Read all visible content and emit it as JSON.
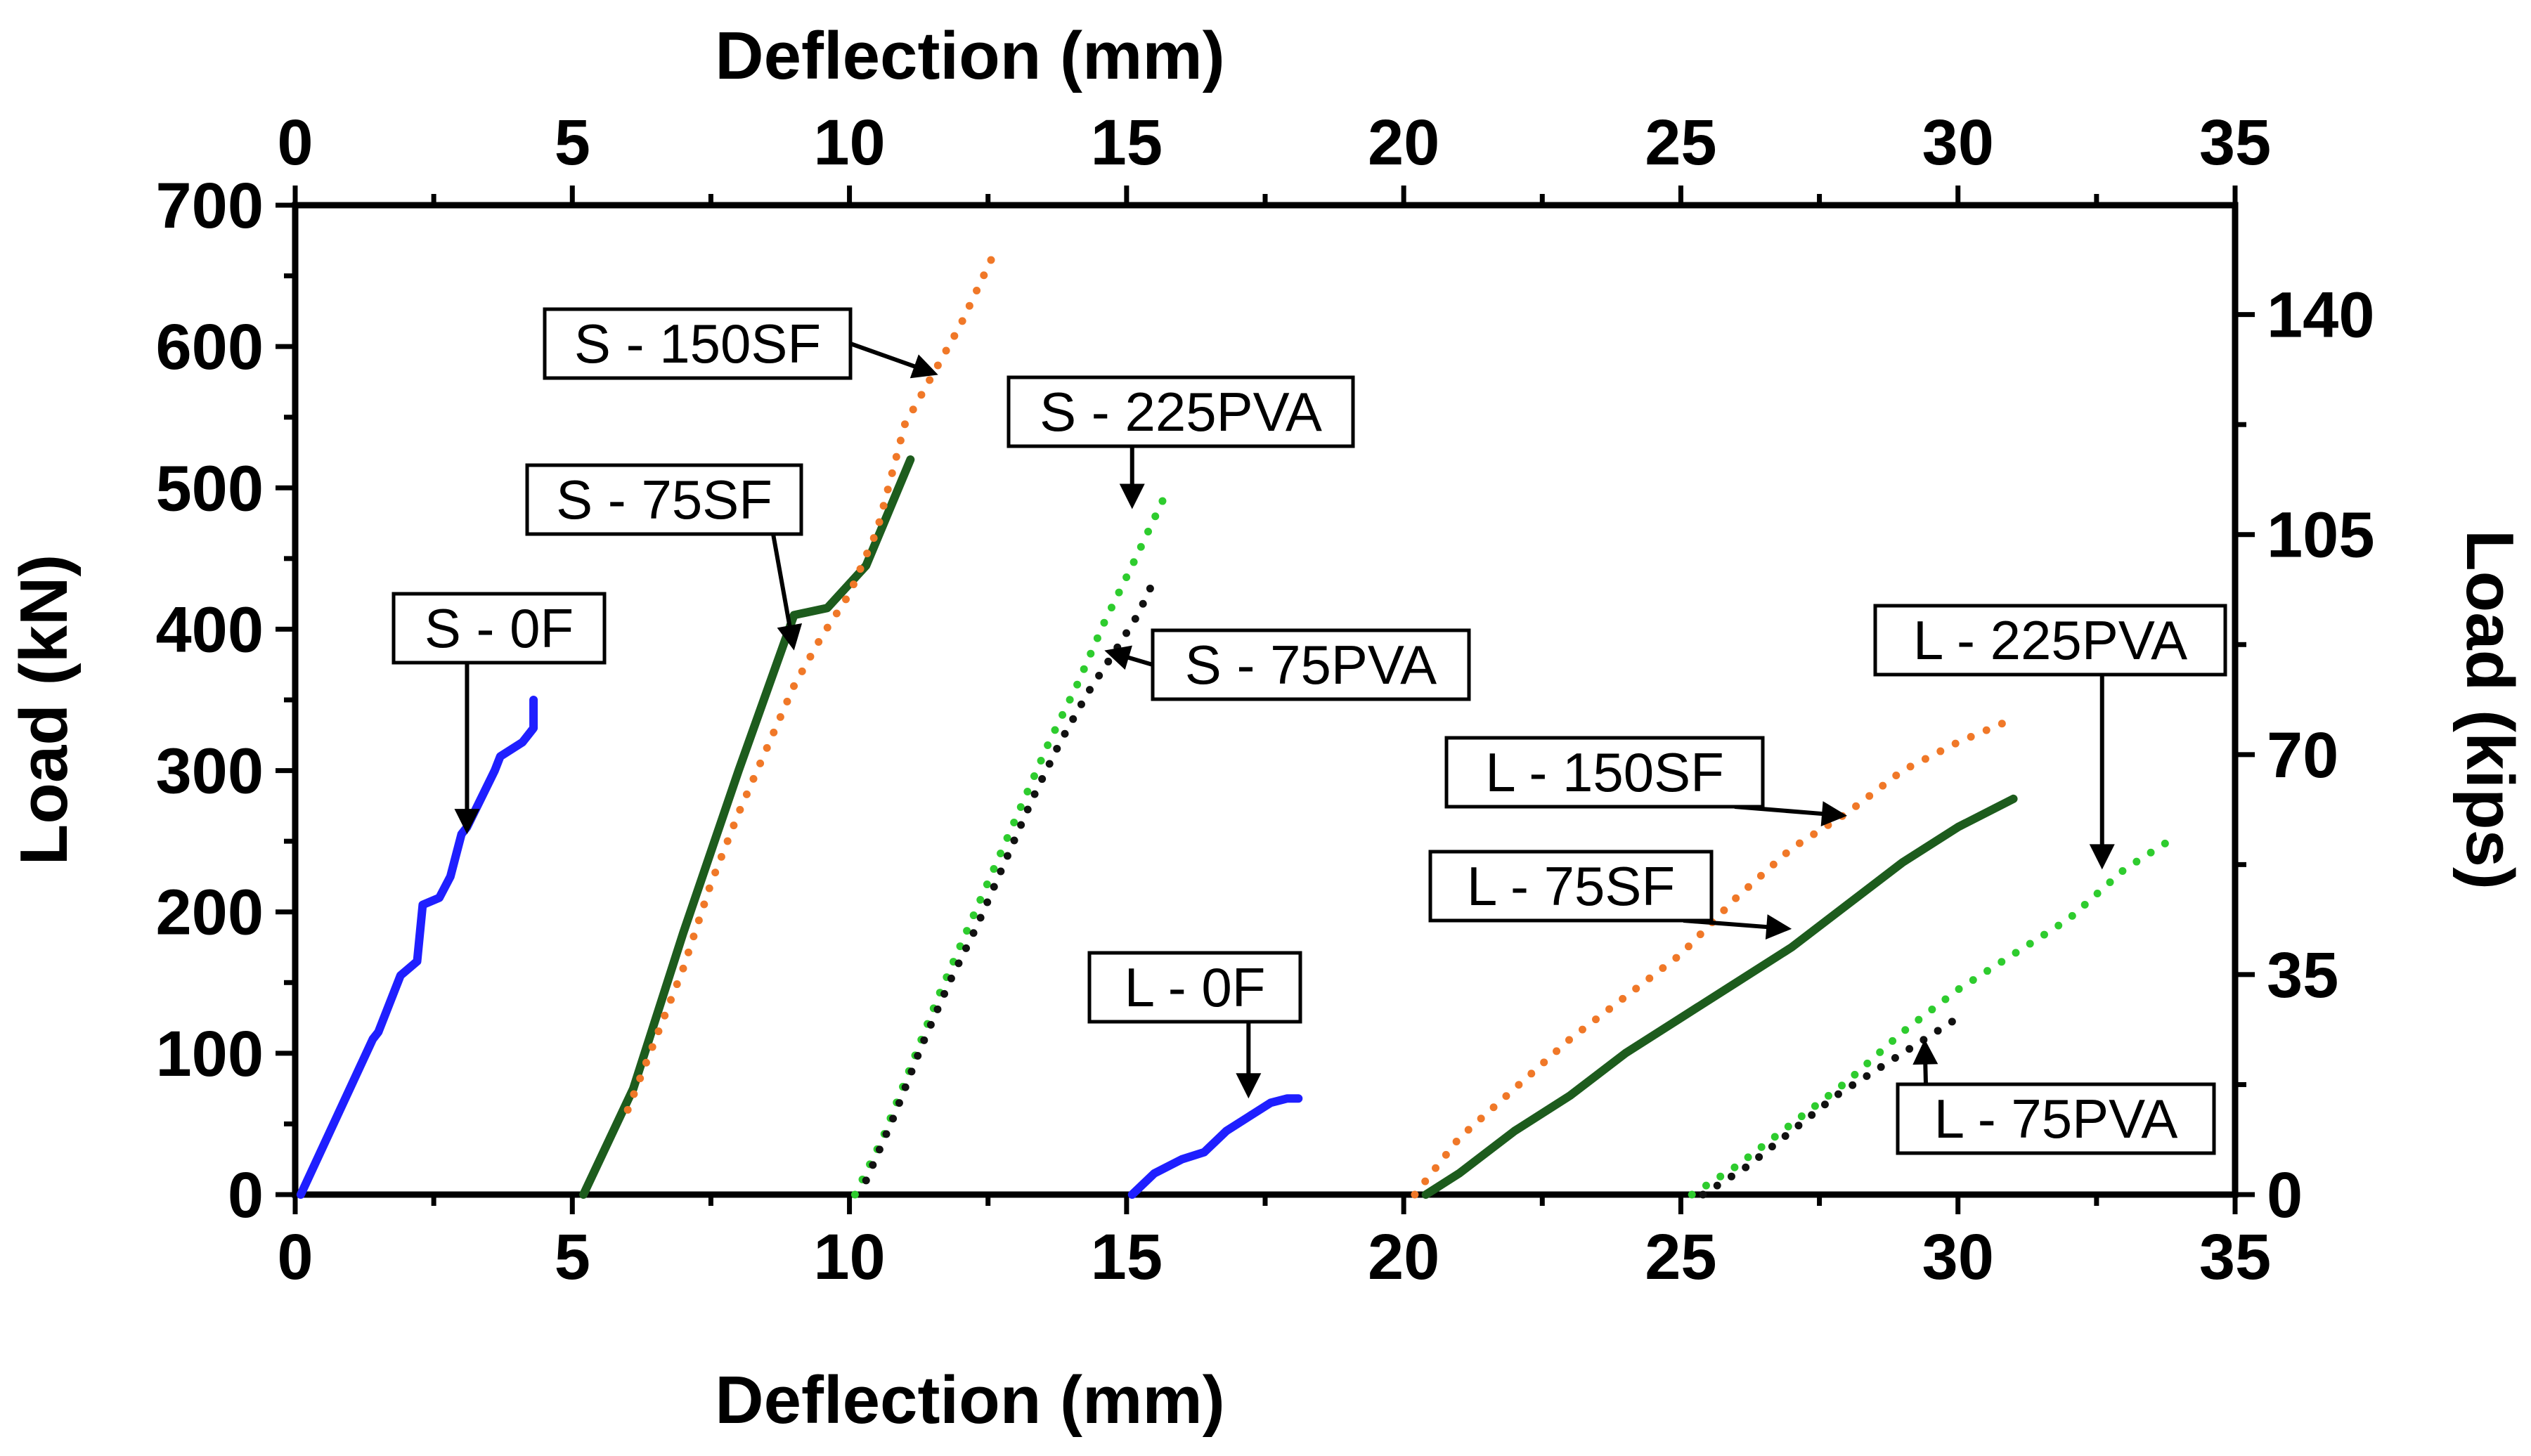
{
  "chart_data": {
    "type": "line",
    "xlabel_top": "Deflection (mm)",
    "xlabel_bottom": "Deflection (mm)",
    "ylabel_left": "Load (kN)",
    "ylabel_right": "Load (kips)",
    "xlim": [
      0,
      35
    ],
    "ylim_left": [
      0,
      700
    ],
    "ylim_right": [
      0,
      157.4
    ],
    "x_ticks": [
      0,
      5,
      10,
      15,
      20,
      25,
      30,
      35
    ],
    "y_ticks_left": [
      0,
      100,
      200,
      300,
      400,
      500,
      600,
      700
    ],
    "y_ticks_right": [
      0,
      35,
      70,
      105,
      140
    ],
    "series": [
      {
        "name": "S - 0F",
        "color": "#1f1fff",
        "style": "solid",
        "x": [
          0.1,
          1.4,
          1.5,
          1.8,
          1.9,
          2.2,
          2.3,
          2.6,
          2.8,
          3.0,
          3.1,
          3.6,
          3.7,
          4.1,
          4.3,
          4.3
        ],
        "y": [
          0,
          110,
          115,
          145,
          155,
          165,
          205,
          210,
          225,
          255,
          260,
          300,
          310,
          320,
          330,
          350
        ]
      },
      {
        "name": "S - 75SF",
        "color": "#1d5c1d",
        "style": "solid",
        "x": [
          5.2,
          6.1,
          7.0,
          8.0,
          9.0,
          9.6,
          10.3,
          11.1
        ],
        "y": [
          0,
          75,
          185,
          300,
          410,
          415,
          445,
          520
        ]
      },
      {
        "name": "S - 150SF",
        "color": "#f07828",
        "style": "dotted",
        "x": [
          6.0,
          6.5,
          7.0,
          7.5,
          8.0,
          8.5,
          9.0,
          9.5,
          10.0,
          10.5,
          11.0,
          11.5,
          12.0,
          12.6
        ],
        "y": [
          60,
          110,
          160,
          220,
          270,
          315,
          360,
          395,
          425,
          470,
          545,
          580,
          615,
          665
        ]
      },
      {
        "name": "S - 225PVA",
        "color": "#2ecc2e",
        "style": "dotted",
        "x": [
          10.1,
          10.6,
          11.1,
          11.6,
          12.1,
          12.6,
          13.1,
          13.6,
          14.1,
          14.6,
          15.1,
          15.4,
          15.7
        ],
        "y": [
          0,
          40,
          90,
          140,
          185,
          230,
          275,
          320,
          360,
          405,
          445,
          470,
          495
        ]
      },
      {
        "name": "S - 75PVA",
        "color": "#111111",
        "style": "dotted",
        "x": [
          10.3,
          10.8,
          11.3,
          11.8,
          12.3,
          12.8,
          13.3,
          13.8,
          14.3,
          14.8,
          15.2,
          15.5
        ],
        "y": [
          10,
          55,
          105,
          150,
          190,
          235,
          280,
          320,
          355,
          385,
          410,
          435
        ]
      },
      {
        "name": "L - 0F",
        "color": "#1f1fff",
        "style": "solid",
        "x": [
          15.1,
          15.5,
          16.0,
          16.4,
          16.8,
          17.2,
          17.6,
          17.9,
          18.1
        ],
        "y": [
          0,
          15,
          25,
          30,
          45,
          55,
          65,
          68,
          68
        ]
      },
      {
        "name": "L - 75SF",
        "color": "#1d5c1d",
        "style": "solid",
        "x": [
          20.4,
          21.0,
          22.0,
          23.0,
          24.0,
          25.0,
          26.0,
          27.0,
          28.0,
          29.0,
          30.0,
          31.0
        ],
        "y": [
          0,
          15,
          45,
          70,
          100,
          125,
          150,
          175,
          205,
          235,
          260,
          280
        ]
      },
      {
        "name": "L - 150SF",
        "color": "#f07828",
        "style": "dotted",
        "x": [
          20.2,
          21.0,
          22.0,
          23.0,
          24.0,
          25.0,
          26.0,
          27.0,
          28.0,
          29.0,
          30.0,
          30.9
        ],
        "y": [
          0,
          40,
          75,
          110,
          140,
          170,
          210,
          245,
          270,
          300,
          320,
          335
        ]
      },
      {
        "name": "L - 225PVA",
        "color": "#2ecc2e",
        "style": "dotted",
        "x": [
          25.2,
          26.0,
          27.0,
          28.0,
          29.0,
          30.0,
          31.0,
          32.0,
          33.0,
          33.8
        ],
        "y": [
          0,
          20,
          50,
          80,
          115,
          145,
          170,
          195,
          230,
          250
        ]
      },
      {
        "name": "L - 75PVA",
        "color": "#111111",
        "style": "dotted",
        "x": [
          25.4,
          26.2,
          27.0,
          27.8,
          28.6,
          29.4,
          30.0
        ],
        "y": [
          0,
          20,
          45,
          70,
          90,
          110,
          125
        ]
      }
    ],
    "annotations": [
      {
        "text": "S - 0F",
        "points_to": [
          3.1,
          255
        ]
      },
      {
        "text": "S - 75SF",
        "points_to": [
          9.0,
          385
        ]
      },
      {
        "text": "S - 150SF",
        "points_to": [
          11.6,
          580
        ]
      },
      {
        "text": "S - 225PVA",
        "points_to": [
          15.1,
          485
        ]
      },
      {
        "text": "S - 75PVA",
        "points_to": [
          14.6,
          385
        ]
      },
      {
        "text": "L - 0F",
        "points_to": [
          17.2,
          68
        ]
      },
      {
        "text": "L - 150SF",
        "points_to": [
          28.0,
          268
        ]
      },
      {
        "text": "L - 75SF",
        "points_to": [
          27.0,
          188
        ]
      },
      {
        "text": "L - 225PVA",
        "points_to": [
          32.6,
          230
        ]
      },
      {
        "text": "L - 75PVA",
        "points_to": [
          29.4,
          110
        ]
      }
    ]
  }
}
